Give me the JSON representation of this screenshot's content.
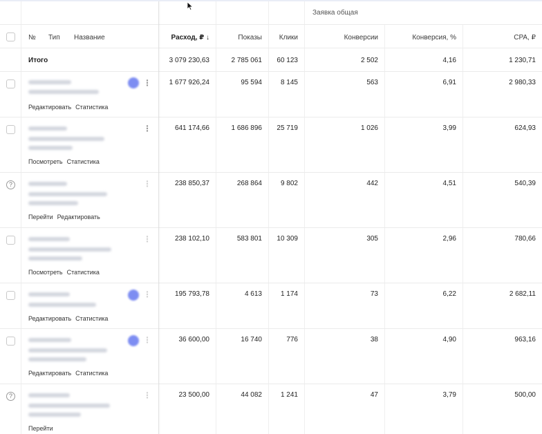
{
  "header": {
    "group_title": "Заявка общая",
    "col_no": "№",
    "col_type": "Тип",
    "col_name": "Название",
    "col_spend": "Расход, ₽ ↓",
    "col_impr": "Показы",
    "col_clicks": "Клики",
    "col_conv": "Конверсии",
    "col_conv_pct": "Конверсия, %",
    "col_cpa": "CPA, ₽"
  },
  "totals": {
    "label": "Итого",
    "spend": "3 079 230,63",
    "impr": "2 785 061",
    "clicks": "60 123",
    "conv": "2 502",
    "conv_pct": "4,16",
    "cpa": "1 230,71"
  },
  "rows": [
    {
      "links": [
        "Редактировать",
        "Статистика"
      ],
      "spend": "1 677 926,24",
      "impr": "95 594",
      "clicks": "8 145",
      "conv": "563",
      "conv_pct": "6,91",
      "cpa": "2 980,33"
    },
    {
      "links": [
        "Посмотреть",
        "Статистика"
      ],
      "spend": "641 174,66",
      "impr": "1 686 896",
      "clicks": "25 719",
      "conv": "1 026",
      "conv_pct": "3,99",
      "cpa": "624,93"
    },
    {
      "links": [
        "Перейти",
        "Редактировать"
      ],
      "spend": "238 850,37",
      "impr": "268 864",
      "clicks": "9 802",
      "conv": "442",
      "conv_pct": "4,51",
      "cpa": "540,39"
    },
    {
      "links": [
        "Посмотреть",
        "Статистика"
      ],
      "spend": "238 102,10",
      "impr": "583 801",
      "clicks": "10 309",
      "conv": "305",
      "conv_pct": "2,96",
      "cpa": "780,66"
    },
    {
      "links": [
        "Редактировать",
        "Статистика"
      ],
      "spend": "195 793,78",
      "impr": "4 613",
      "clicks": "1 174",
      "conv": "73",
      "conv_pct": "6,22",
      "cpa": "2 682,11"
    },
    {
      "links": [
        "Редактировать",
        "Статистика"
      ],
      "spend": "36 600,00",
      "impr": "16 740",
      "clicks": "776",
      "conv": "38",
      "conv_pct": "4,90",
      "cpa": "963,16"
    },
    {
      "links": [
        "Перейти"
      ],
      "spend": "23 500,00",
      "impr": "44 082",
      "clicks": "1 241",
      "conv": "47",
      "conv_pct": "3,79",
      "cpa": "500,00"
    }
  ]
}
